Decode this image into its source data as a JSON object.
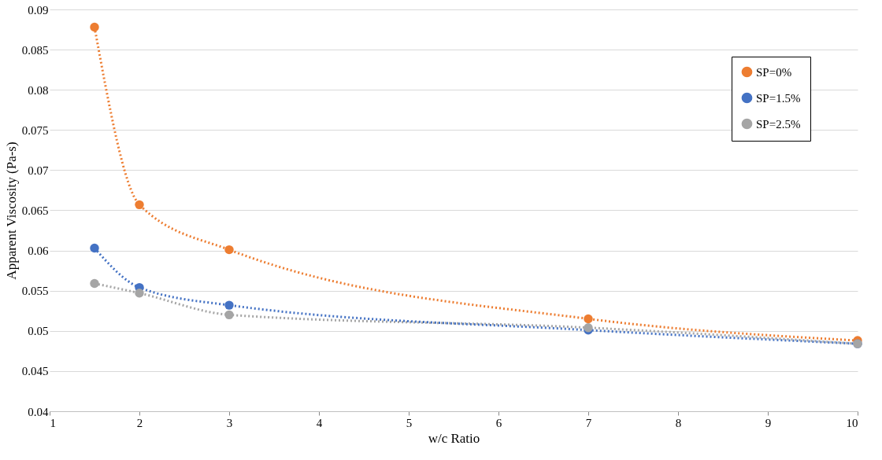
{
  "chart_data": {
    "type": "line",
    "xlabel": "w/c Ratio",
    "ylabel": "Apparent  Viscosity (Pa-s)",
    "x": [
      1.5,
      2,
      3,
      7,
      10
    ],
    "series": [
      {
        "name": "SP=0%",
        "color": "#ed7d31",
        "values": [
          0.0878,
          0.0657,
          0.0601,
          0.0515,
          0.0488
        ]
      },
      {
        "name": "SP=1.5%",
        "color": "#4472c4",
        "values": [
          0.0603,
          0.0554,
          0.0532,
          0.0501,
          0.0484
        ]
      },
      {
        "name": "SP=2.5%",
        "color": "#a5a5a5",
        "values": [
          0.0559,
          0.0547,
          0.052,
          0.0504,
          0.0484
        ]
      }
    ],
    "xlim": [
      1,
      10
    ],
    "xticks": [
      1,
      2,
      3,
      4,
      5,
      6,
      7,
      8,
      9,
      10
    ],
    "ylim": [
      0.04,
      0.09
    ],
    "yticks": [
      0.04,
      0.045,
      0.05,
      0.055,
      0.06,
      0.065,
      0.07,
      0.075,
      0.08,
      0.085,
      0.09
    ],
    "grid": "y",
    "legend": "top right",
    "marker": "circle",
    "line_style": "dotted"
  }
}
